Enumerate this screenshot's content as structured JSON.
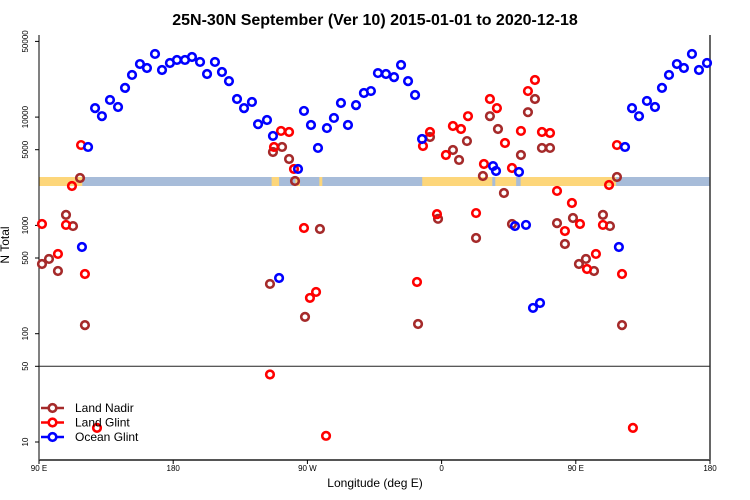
{
  "chart_data": {
    "type": "scatter",
    "title": "25N-30N September (Ver 10)   2015-01-01 to 2020-12-18",
    "xlabel": "Longitude (deg E)",
    "ylabel": "N Total",
    "xlim": [
      90,
      540
    ],
    "ylim": [
      7,
      60000
    ],
    "yscale": "log",
    "x_ticks": [
      {
        "value": 90,
        "label": "90 E"
      },
      {
        "value": 180,
        "label": "180"
      },
      {
        "value": 270,
        "label": "90 W"
      },
      {
        "value": 360,
        "label": "0"
      },
      {
        "value": 450,
        "label": "90 E"
      },
      {
        "value": 540,
        "label": "180"
      }
    ],
    "y_ticks": [
      {
        "value": 10,
        "label": "10"
      },
      {
        "value": 50,
        "label": "50"
      },
      {
        "value": 100,
        "label": "100"
      },
      {
        "value": 500,
        "label": "500"
      },
      {
        "value": 1000,
        "label": "1000"
      },
      {
        "value": 5000,
        "label": "5000"
      },
      {
        "value": 10000,
        "label": "10000"
      },
      {
        "value": 50000,
        "label": "50000"
      }
    ],
    "reference_line_y": 50,
    "legend_position": "bottom-left",
    "land_mask_strip": {
      "land_color": "#FDD67A",
      "ocean_color": "#A7BCD9",
      "land_ranges": [
        [
          90,
          119
        ],
        [
          246,
          251
        ],
        [
          262,
          265
        ],
        [
          278,
          280
        ],
        [
          347,
          394
        ],
        [
          396,
          410
        ],
        [
          413,
          477
        ]
      ]
    },
    "series": [
      {
        "name": "Land Nadir",
        "color": "#A52A2A",
        "points": [
          [
            117.5,
            2740
          ],
          [
            246.9,
            4760
          ],
          [
            253.0,
            5300
          ],
          [
            257.7,
            4100
          ],
          [
            261.7,
            2570
          ],
          [
            352.2,
            6550
          ],
          [
            367.6,
            4970
          ],
          [
            371.7,
            4020
          ],
          [
            377.0,
            6010
          ],
          [
            392.4,
            10200
          ],
          [
            397.8,
            7760
          ],
          [
            387.7,
            2860
          ],
          [
            413.2,
            4470
          ],
          [
            417.9,
            11100
          ],
          [
            422.6,
            14700
          ],
          [
            427.3,
            5190
          ],
          [
            432.7,
            5190
          ],
          [
            477.6,
            2800
          ],
          [
            108.1,
            1250
          ],
          [
            112.8,
            986
          ],
          [
            96.7,
            490
          ],
          [
            92.0,
            440
          ],
          [
            102.7,
            379
          ],
          [
            120.8,
            120
          ],
          [
            278.4,
            927
          ],
          [
            244.9,
            288
          ],
          [
            268.4,
            143
          ],
          [
            357.6,
            1150
          ],
          [
            383.1,
            765
          ],
          [
            344.2,
            123
          ],
          [
            401.8,
            1990
          ],
          [
            407.2,
            1030
          ],
          [
            437.4,
            1050
          ],
          [
            448.1,
            1170
          ],
          [
            468.2,
            1250
          ],
          [
            472.9,
            986
          ],
          [
            442.7,
            673
          ],
          [
            452.1,
            440
          ],
          [
            456.8,
            490
          ],
          [
            462.2,
            379
          ],
          [
            481.0,
            120
          ]
        ]
      },
      {
        "name": "Land Glint",
        "color": "#FF0000",
        "points": [
          [
            118.2,
            5520
          ],
          [
            112.1,
            2310
          ],
          [
            252.3,
            7450
          ],
          [
            257.7,
            7280
          ],
          [
            247.6,
            5300
          ],
          [
            261.0,
            3320
          ],
          [
            352.2,
            7280
          ],
          [
            347.5,
            5410
          ],
          [
            367.6,
            8280
          ],
          [
            362.9,
            4470
          ],
          [
            373.0,
            7760
          ],
          [
            377.7,
            10200
          ],
          [
            392.4,
            14700
          ],
          [
            397.1,
            12100
          ],
          [
            402.5,
            5770
          ],
          [
            388.4,
            3690
          ],
          [
            407.2,
            3390
          ],
          [
            413.2,
            7450
          ],
          [
            417.9,
            17400
          ],
          [
            422.6,
            22000
          ],
          [
            427.3,
            7280
          ],
          [
            432.7,
            7130
          ],
          [
            477.6,
            5520
          ],
          [
            472.3,
            2360
          ],
          [
            92.0,
            1030
          ],
          [
            108.1,
            1010
          ],
          [
            102.7,
            545
          ],
          [
            120.8,
            356
          ],
          [
            267.7,
            946
          ],
          [
            271.7,
            214
          ],
          [
            275.8,
            243
          ],
          [
            244.9,
            42
          ],
          [
            128.9,
            13.5
          ],
          [
            282.5,
            11.4
          ],
          [
            356.9,
            1270
          ],
          [
            383.1,
            1300
          ],
          [
            343.5,
            300
          ],
          [
            437.4,
            2080
          ],
          [
            447.4,
            1610
          ],
          [
            452.8,
            1030
          ],
          [
            442.7,
            887
          ],
          [
            468.2,
            1010
          ],
          [
            463.5,
            545
          ],
          [
            457.5,
            396
          ],
          [
            481.0,
            356
          ],
          [
            488.3,
            13.5
          ]
        ]
      },
      {
        "name": "Ocean Glint",
        "color": "#0000FF",
        "points": [
          [
            122.9,
            5300
          ],
          [
            127.6,
            12100
          ],
          [
            132.2,
            10200
          ],
          [
            137.6,
            14400
          ],
          [
            143.0,
            12400
          ],
          [
            147.7,
            18600
          ],
          [
            152.4,
            24500
          ],
          [
            157.7,
            30900
          ],
          [
            162.4,
            28400
          ],
          [
            167.8,
            38300
          ],
          [
            172.5,
            27200
          ],
          [
            177.8,
            31600
          ],
          [
            182.5,
            33700
          ],
          [
            187.9,
            33700
          ],
          [
            192.6,
            35900
          ],
          [
            198.0,
            32300
          ],
          [
            202.7,
            25000
          ],
          [
            208.0,
            32300
          ],
          [
            212.7,
            26100
          ],
          [
            217.4,
            21500
          ],
          [
            222.8,
            14700
          ],
          [
            227.5,
            12100
          ],
          [
            232.8,
            13800
          ],
          [
            236.9,
            8600
          ],
          [
            242.9,
            9400
          ],
          [
            246.9,
            6700
          ],
          [
            263.7,
            3320
          ],
          [
            267.7,
            11400
          ],
          [
            272.4,
            8450
          ],
          [
            277.1,
            5190
          ],
          [
            283.1,
            7920
          ],
          [
            287.8,
            9820
          ],
          [
            292.5,
            13500
          ],
          [
            297.2,
            8450
          ],
          [
            302.6,
            12900
          ],
          [
            307.9,
            16700
          ],
          [
            312.6,
            17400
          ],
          [
            317.3,
            25500
          ],
          [
            322.7,
            25000
          ],
          [
            328.1,
            23400
          ],
          [
            332.8,
            30300
          ],
          [
            337.5,
            21500
          ],
          [
            342.2,
            16000
          ],
          [
            346.9,
            6280
          ],
          [
            394.5,
            3530
          ],
          [
            396.5,
            3180
          ],
          [
            411.9,
            3110
          ],
          [
            483.0,
            5300
          ],
          [
            487.7,
            12100
          ],
          [
            492.4,
            10200
          ],
          [
            497.7,
            14100
          ],
          [
            503.1,
            12400
          ],
          [
            507.8,
            18600
          ],
          [
            512.5,
            24500
          ],
          [
            517.8,
            30900
          ],
          [
            522.5,
            28400
          ],
          [
            527.9,
            38300
          ],
          [
            532.6,
            27200
          ],
          [
            538.0,
            31600
          ],
          [
            118.8,
            632
          ],
          [
            251.0,
            327
          ],
          [
            409.2,
            986
          ],
          [
            416.6,
            1010
          ],
          [
            478.9,
            632
          ],
          [
            421.3,
            173
          ],
          [
            426.0,
            192
          ]
        ]
      }
    ]
  }
}
